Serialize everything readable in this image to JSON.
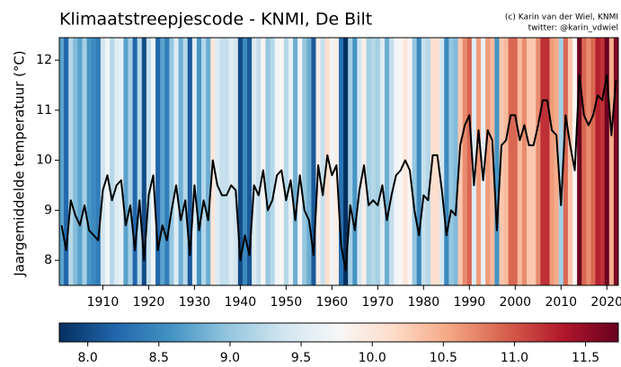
{
  "chart_data": {
    "type": "line",
    "title": "Klimaatstreepjescode - KNMI, De Bilt",
    "annotations": [
      "(c) Karin van der Wiel, KNMI",
      "twitter: @karin_vdwiel"
    ],
    "y_label": "Jaargemiddelde temperatuur (°C)",
    "x": [
      1901,
      1902,
      1903,
      1904,
      1905,
      1906,
      1907,
      1908,
      1909,
      1910,
      1911,
      1912,
      1913,
      1914,
      1915,
      1916,
      1917,
      1918,
      1919,
      1920,
      1921,
      1922,
      1923,
      1924,
      1925,
      1926,
      1927,
      1928,
      1929,
      1930,
      1931,
      1932,
      1933,
      1934,
      1935,
      1936,
      1937,
      1938,
      1939,
      1940,
      1941,
      1942,
      1943,
      1944,
      1945,
      1946,
      1947,
      1948,
      1949,
      1950,
      1951,
      1952,
      1953,
      1954,
      1955,
      1956,
      1957,
      1958,
      1959,
      1960,
      1961,
      1962,
      1963,
      1964,
      1965,
      1966,
      1967,
      1968,
      1969,
      1970,
      1971,
      1972,
      1973,
      1974,
      1975,
      1976,
      1977,
      1978,
      1979,
      1980,
      1981,
      1982,
      1983,
      1984,
      1985,
      1986,
      1987,
      1988,
      1989,
      1990,
      1991,
      1992,
      1993,
      1994,
      1995,
      1996,
      1997,
      1998,
      1999,
      2000,
      2001,
      2002,
      2003,
      2004,
      2005,
      2006,
      2007,
      2008,
      2009,
      2010,
      2011,
      2012,
      2013,
      2014,
      2015,
      2016,
      2017,
      2018,
      2019,
      2020,
      2021,
      2022
    ],
    "values": [
      8.7,
      8.2,
      9.2,
      8.9,
      8.7,
      9.1,
      8.6,
      8.5,
      8.4,
      9.4,
      9.7,
      9.2,
      9.5,
      9.6,
      8.7,
      9.1,
      8.2,
      9.2,
      8.0,
      9.3,
      9.7,
      8.2,
      8.7,
      8.4,
      9.0,
      9.5,
      8.8,
      9.2,
      8.1,
      9.5,
      8.6,
      9.2,
      8.8,
      10.0,
      9.5,
      9.3,
      9.3,
      9.5,
      9.4,
      8.0,
      8.5,
      8.1,
      9.5,
      9.3,
      9.8,
      9.0,
      9.2,
      9.7,
      9.8,
      9.2,
      9.6,
      8.8,
      9.7,
      9.0,
      8.8,
      8.1,
      9.9,
      9.3,
      10.1,
      9.7,
      9.9,
      8.3,
      7.8,
      9.1,
      8.6,
      9.4,
      9.9,
      9.1,
      9.2,
      9.1,
      9.5,
      8.8,
      9.3,
      9.7,
      9.8,
      10.0,
      9.8,
      9.0,
      8.5,
      9.3,
      9.2,
      10.1,
      10.1,
      9.4,
      8.5,
      9.0,
      8.9,
      10.3,
      10.7,
      10.9,
      9.5,
      10.6,
      9.6,
      10.6,
      10.4,
      8.6,
      10.3,
      10.4,
      10.9,
      10.9,
      10.4,
      10.7,
      10.3,
      10.3,
      10.7,
      11.2,
      11.2,
      10.6,
      10.5,
      9.1,
      10.9,
      10.3,
      9.8,
      11.7,
      10.9,
      10.7,
      10.9,
      11.3,
      11.2,
      11.7,
      10.5,
      11.6
    ],
    "color": "#000000",
    "xlim": [
      1900.5,
      2022.5
    ],
    "xticks": [
      1910,
      1920,
      1930,
      1940,
      1950,
      1960,
      1970,
      1980,
      1990,
      2000,
      2010,
      2020
    ],
    "ylim": [
      7.5,
      12.45
    ],
    "yticks": [
      8,
      9,
      10,
      11,
      12
    ],
    "colormap": [
      "#053061",
      "#2166ac",
      "#4393c3",
      "#92c5de",
      "#d1e5f0",
      "#f7f7f7",
      "#fddbc7",
      "#f4a582",
      "#d6604d",
      "#b2182b",
      "#67001f"
    ],
    "clim": [
      7.8,
      11.73
    ],
    "cticks": [
      {
        "value": 8,
        "label": "8.0"
      },
      8.5,
      {
        "value": 9,
        "label": "9.0"
      },
      9.5,
      {
        "value": 10,
        "label": "10.0"
      },
      10.5,
      {
        "value": 11,
        "label": "11.0"
      },
      11.5
    ]
  }
}
